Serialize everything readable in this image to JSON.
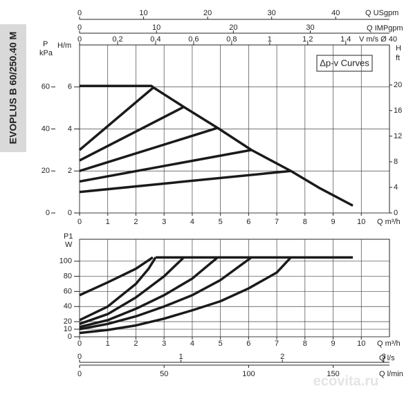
{
  "side_title": "EVOPLUS B 60/250.40 M",
  "watermark": "ecovita.ru",
  "chart_data": [
    {
      "type": "line",
      "annotation": "Δp-v Curves",
      "grid": true,
      "color": "#1a1a1a",
      "x_axes": [
        {
          "label": "Q m³/h",
          "lim": [
            0,
            11
          ],
          "ticks": [
            0,
            1,
            2,
            3,
            4,
            5,
            6,
            7,
            8,
            9,
            10
          ]
        },
        {
          "label": "Q USgpm",
          "lim": [
            0,
            48.4
          ],
          "ticks": [
            0,
            10,
            20,
            30,
            40
          ]
        },
        {
          "label": "Q IMPgpm",
          "lim": [
            0,
            40.3
          ],
          "ticks": [
            0,
            10,
            20,
            30
          ]
        },
        {
          "label": "V m/s Ø 40",
          "lim": [
            0,
            1.63
          ],
          "ticks": [
            0,
            {
              "value": 0.2,
              "label": "0,2"
            },
            {
              "value": 0.4,
              "label": "0,4"
            },
            {
              "value": 0.6,
              "label": "0,6"
            },
            {
              "value": 0.8,
              "label": "0,8"
            },
            1,
            {
              "value": 1.2,
              "label": "1,2"
            },
            {
              "value": 1.4,
              "label": "1,4"
            }
          ]
        }
      ],
      "y_axes": [
        {
          "label": "H/m",
          "lim": [
            0,
            8
          ],
          "ticks": [
            0,
            2,
            4,
            6
          ]
        },
        {
          "label": "P",
          "unit": "kPa",
          "lim": [
            0,
            80
          ],
          "ticks": [
            0,
            20,
            40,
            60
          ]
        },
        {
          "label": "H",
          "unit": "ft",
          "lim": [
            0,
            26.25
          ],
          "ticks": [
            0,
            4,
            8,
            12,
            16,
            20
          ]
        }
      ],
      "series": [
        {
          "x": [
            0,
            2.55,
            2.65,
            3.7,
            4.9,
            6.1,
            7.5,
            8.5,
            9.7
          ],
          "values": [
            6.05,
            6.05,
            5.95,
            5.05,
            4.05,
            3.0,
            2.0,
            1.2,
            0.35
          ]
        },
        {
          "x": [
            0,
            2.6
          ],
          "values": [
            3.0,
            5.95
          ]
        },
        {
          "x": [
            0,
            3.7
          ],
          "values": [
            2.5,
            5.05
          ]
        },
        {
          "x": [
            0,
            4.9
          ],
          "values": [
            2.0,
            4.05
          ]
        },
        {
          "x": [
            0,
            6.1
          ],
          "values": [
            1.5,
            3.0
          ]
        },
        {
          "x": [
            0,
            7.5
          ],
          "values": [
            1.0,
            2.0
          ]
        }
      ]
    },
    {
      "type": "line",
      "grid": true,
      "color": "#1a1a1a",
      "x_axes": [
        {
          "label": "Q m³/h",
          "lim": [
            0,
            11
          ],
          "ticks": [
            0,
            1,
            2,
            3,
            4,
            5,
            6,
            7,
            8,
            9,
            10
          ]
        },
        {
          "label": "Q l/s",
          "lim": [
            0,
            3.056
          ],
          "ticks": [
            0,
            1,
            2,
            3
          ]
        },
        {
          "label": "Q l/min",
          "lim": [
            0,
            183.3
          ],
          "ticks": [
            0,
            50,
            100,
            150
          ]
        }
      ],
      "y_axes": [
        {
          "label": "P1",
          "unit": "W",
          "lim": [
            0,
            129
          ],
          "ticks": [
            0,
            10,
            20,
            40,
            60,
            80,
            100
          ]
        }
      ],
      "series": [
        {
          "x": [
            2.7,
            9.7
          ],
          "values": [
            105,
            105
          ]
        },
        {
          "x": [
            0,
            1,
            2,
            2.6
          ],
          "values": [
            55,
            72,
            90,
            105
          ]
        },
        {
          "x": [
            0,
            1,
            2,
            2.45,
            2.7
          ],
          "values": [
            22,
            40,
            70,
            90,
            105
          ]
        },
        {
          "x": [
            0,
            1,
            2,
            3,
            3.7
          ],
          "values": [
            17,
            30,
            52,
            80,
            105
          ]
        },
        {
          "x": [
            0,
            1,
            2,
            3,
            4,
            4.9
          ],
          "values": [
            13,
            22,
            37,
            55,
            77,
            105
          ]
        },
        {
          "x": [
            0,
            1,
            2,
            3,
            4,
            5,
            6.1
          ],
          "values": [
            10,
            17,
            27,
            40,
            55,
            75,
            105
          ]
        },
        {
          "x": [
            0,
            1,
            2,
            3,
            4,
            5,
            6,
            7,
            7.5
          ],
          "values": [
            5,
            9,
            15,
            24,
            35,
            47,
            64,
            85,
            105
          ]
        }
      ]
    }
  ]
}
